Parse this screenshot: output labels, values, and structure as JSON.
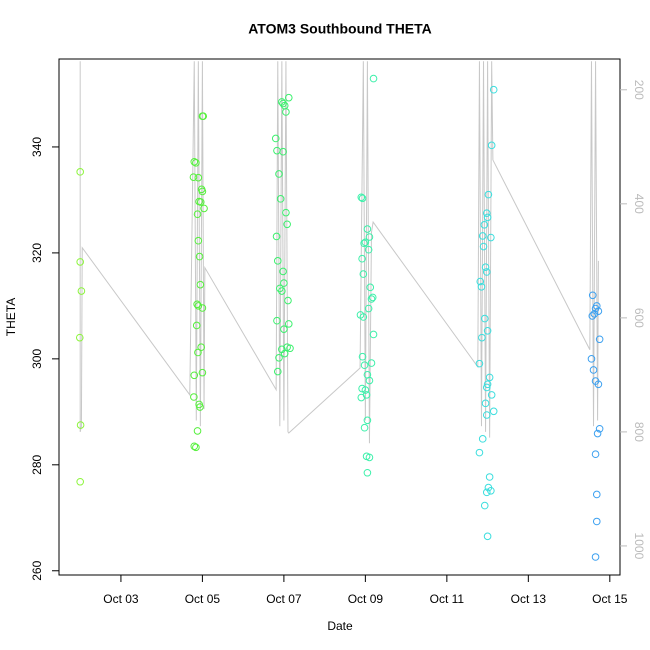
{
  "chart_data": {
    "type": "scatter",
    "title": "ATOM3 Southbound THETA",
    "x_label": "Date",
    "y_label": "THETA",
    "xlim": [
      1.48,
      15.25
    ],
    "xticks": [
      {
        "value": 3,
        "label": "Oct 03"
      },
      {
        "value": 5,
        "label": "Oct 05"
      },
      {
        "value": 7,
        "label": "Oct 07"
      },
      {
        "value": 9,
        "label": "Oct 09"
      },
      {
        "value": 11,
        "label": "Oct 11"
      },
      {
        "value": 13,
        "label": "Oct 13"
      },
      {
        "value": 15,
        "label": "Oct 15"
      }
    ],
    "ylim": [
      259.2,
      356.6
    ],
    "yticks": [
      260,
      280,
      300,
      320,
      340
    ],
    "y2lim": [
      1051,
      146
    ],
    "y2ticks": [
      200,
      400,
      600,
      800,
      1000
    ],
    "series": [
      {
        "style": "line",
        "axis": "y2",
        "color": "#c8c8c8",
        "x": [
          2.0,
          2.0,
          2.03,
          2.05,
          4.69,
          4.8,
          4.85,
          4.9,
          4.95,
          5.0,
          5.04,
          5.06,
          6.81,
          6.85,
          6.9,
          6.95,
          7.0,
          7.05,
          7.1,
          7.12,
          8.87,
          8.95,
          9.0,
          9.05,
          9.1,
          9.15,
          9.19,
          11.76,
          11.8,
          11.85,
          11.9,
          11.95,
          12.0,
          12.05,
          12.1,
          12.13,
          14.51,
          14.55,
          14.6,
          14.65,
          14.7,
          14.72
        ],
        "values": [
          150,
          800,
          790,
          477,
          735,
          150,
          780,
          150,
          790,
          150,
          760,
          512,
          726,
          150,
          790,
          150,
          780,
          150,
          800,
          802,
          688,
          150,
          780,
          150,
          820,
          450,
          432,
          686,
          150,
          790,
          150,
          800,
          150,
          810,
          150,
          323,
          656,
          150,
          790,
          150,
          780,
          500
        ]
      },
      {
        "style": "points",
        "color": "#8cf53c",
        "x": [
          2.0,
          2.0,
          2.03,
          1.99,
          2.01,
          2.0
        ],
        "values": [
          335.3,
          318.3,
          312.8,
          304,
          287.5,
          276.8
        ]
      },
      {
        "style": "points",
        "color": "#55f03c",
        "x": [
          4.8,
          4.84,
          4.78,
          4.9,
          4.98,
          5.0,
          4.92,
          4.96,
          5.04,
          4.88,
          4.9,
          4.93,
          4.95,
          4.87,
          4.9,
          5.0,
          4.86,
          4.97,
          4.89,
          5.0,
          4.8,
          4.79,
          4.92,
          4.94,
          4.88,
          4.8,
          4.84,
          5.02,
          5.0
        ],
        "values": [
          337.2,
          337,
          334.3,
          334.2,
          332,
          331.6,
          329.7,
          329.6,
          328.4,
          327.3,
          322.3,
          319.3,
          314,
          310.3,
          310,
          309.6,
          306.3,
          302.2,
          301.2,
          297.4,
          296.9,
          292.8,
          291.4,
          290.9,
          286.4,
          283.5,
          283.3,
          345.8,
          345.8
        ]
      },
      {
        "style": "points",
        "color": "#3cf06e",
        "x": [
          6.95,
          6.98,
          7.02,
          7.12,
          7.05,
          6.8,
          6.83,
          6.98,
          6.88,
          6.92,
          7.05,
          7.08,
          6.82,
          6.85,
          6.98,
          7.0,
          6.9,
          6.95,
          7.1,
          6.83,
          7.12,
          7.0,
          7.08,
          7.15,
          6.95,
          7.02,
          6.88,
          6.85
        ],
        "values": [
          348.5,
          348.2,
          347.8,
          349.3,
          346.6,
          341.6,
          339.3,
          339.1,
          334.9,
          330.2,
          327.6,
          325.4,
          323.1,
          318.5,
          316.5,
          314.3,
          313.3,
          312.8,
          311,
          307.2,
          306.6,
          305.6,
          302.2,
          302,
          301.8,
          301,
          300.2,
          297.6
        ]
      },
      {
        "style": "points",
        "color": "#3cf0aa",
        "x": [
          9.2,
          8.9,
          8.93,
          9.05,
          9.1,
          9.0,
          8.97,
          9.08,
          8.92,
          8.95,
          9.12,
          9.18,
          9.15,
          9.08,
          8.88,
          8.95,
          9.2,
          8.93,
          9.15,
          8.98,
          9.05,
          9.1,
          8.92,
          9.0,
          9.03,
          8.9,
          9.05,
          8.98,
          9.03,
          9.1,
          9.05
        ],
        "values": [
          352.9,
          330.5,
          330.3,
          324.5,
          323,
          322,
          321.8,
          320.6,
          318.9,
          316,
          313.5,
          311.6,
          311.3,
          309.5,
          308.3,
          307.9,
          304.6,
          300.4,
          299.2,
          298.8,
          297,
          295.9,
          294.4,
          294.1,
          293.2,
          292.7,
          288.4,
          287,
          281.6,
          281.4,
          278.5
        ]
      },
      {
        "style": "points",
        "color": "#3cdede",
        "x": [
          12.15,
          12.1,
          12.02,
          11.98,
          12.0,
          11.92,
          11.88,
          12.08,
          11.9,
          11.95,
          11.98,
          11.82,
          11.85,
          11.93,
          12.0,
          11.86,
          11.8,
          12.05,
          12.0,
          11.98,
          12.1,
          11.95,
          12.15,
          11.98,
          11.88,
          11.8,
          12.05,
          12.02,
          12.08,
          11.98,
          11.93,
          12.0
        ],
        "values": [
          350.8,
          340.3,
          331,
          327.5,
          326.7,
          325.3,
          323.2,
          322.9,
          321.2,
          317.3,
          316.4,
          314.6,
          313.6,
          307.6,
          305.3,
          304,
          299.1,
          296.5,
          295.2,
          294.6,
          293.2,
          291.6,
          290.1,
          289.4,
          284.9,
          282.3,
          277.7,
          275.7,
          275.1,
          274.8,
          272.3,
          266.5
        ]
      },
      {
        "style": "points",
        "color": "#3ca0f0",
        "x": [
          14.58,
          14.68,
          14.65,
          14.72,
          14.62,
          14.57,
          14.75,
          14.55,
          14.6,
          14.65,
          14.72,
          14.75,
          14.7,
          14.65,
          14.68,
          14.68,
          14.65
        ],
        "values": [
          312,
          310,
          309.5,
          309,
          308.5,
          308.1,
          303.7,
          300,
          297.9,
          295.8,
          295.2,
          286.8,
          285.9,
          282,
          274.4,
          269.3,
          262.6
        ]
      }
    ]
  }
}
